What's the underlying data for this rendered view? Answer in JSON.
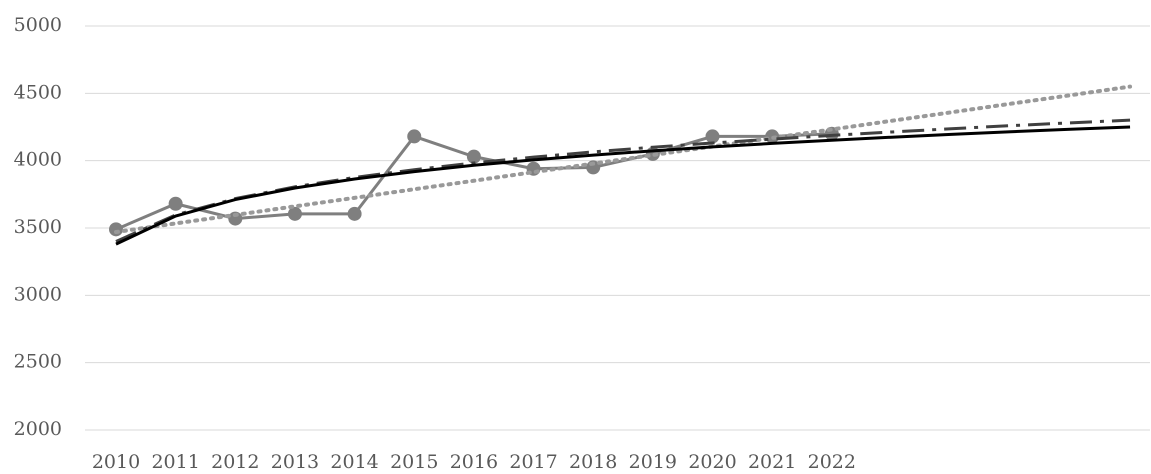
{
  "chart_data": {
    "type": "line",
    "categories": [
      "2010",
      "2011",
      "2012",
      "2013",
      "2014",
      "2015",
      "2016",
      "2017",
      "2018",
      "2019",
      "2020",
      "2021",
      "2022",
      null,
      null,
      null,
      null,
      null
    ],
    "series": [
      {
        "color": "#7f7f7f",
        "marker": true,
        "dash": "solid",
        "values": [
          3490,
          3680,
          3570,
          3605,
          3605,
          4180,
          4030,
          3940,
          3950,
          4050,
          4180,
          4180,
          4200,
          null,
          null,
          null,
          null,
          null
        ]
      },
      {
        "color": "#999999",
        "marker": false,
        "dash": "dotted",
        "values": [
          3470,
          3534,
          3597,
          3661,
          3724,
          3788,
          3851,
          3915,
          3978,
          4042,
          4105,
          4169,
          4232,
          4296,
          4359,
          4423,
          4486,
          4550
        ]
      },
      {
        "color": "#404040",
        "marker": false,
        "dash": "dashdot",
        "values": [
          3400,
          3597,
          3718,
          3806,
          3875,
          3933,
          3983,
          4026,
          4065,
          4100,
          4131,
          4160,
          4188,
          4213,
          4237,
          4260,
          4281,
          4301
        ]
      },
      {
        "color": "#000000",
        "marker": false,
        "dash": "solid",
        "values": [
          3380,
          3589,
          3711,
          3797,
          3864,
          3919,
          3966,
          4006,
          4041,
          4073,
          4102,
          4128,
          4152,
          4174,
          4195,
          4215,
          4233,
          4250
        ]
      }
    ],
    "ylim": [
      2000,
      5000
    ],
    "yticks": [
      2000,
      2500,
      3000,
      3500,
      4000,
      4500,
      5000
    ],
    "grid": true
  }
}
